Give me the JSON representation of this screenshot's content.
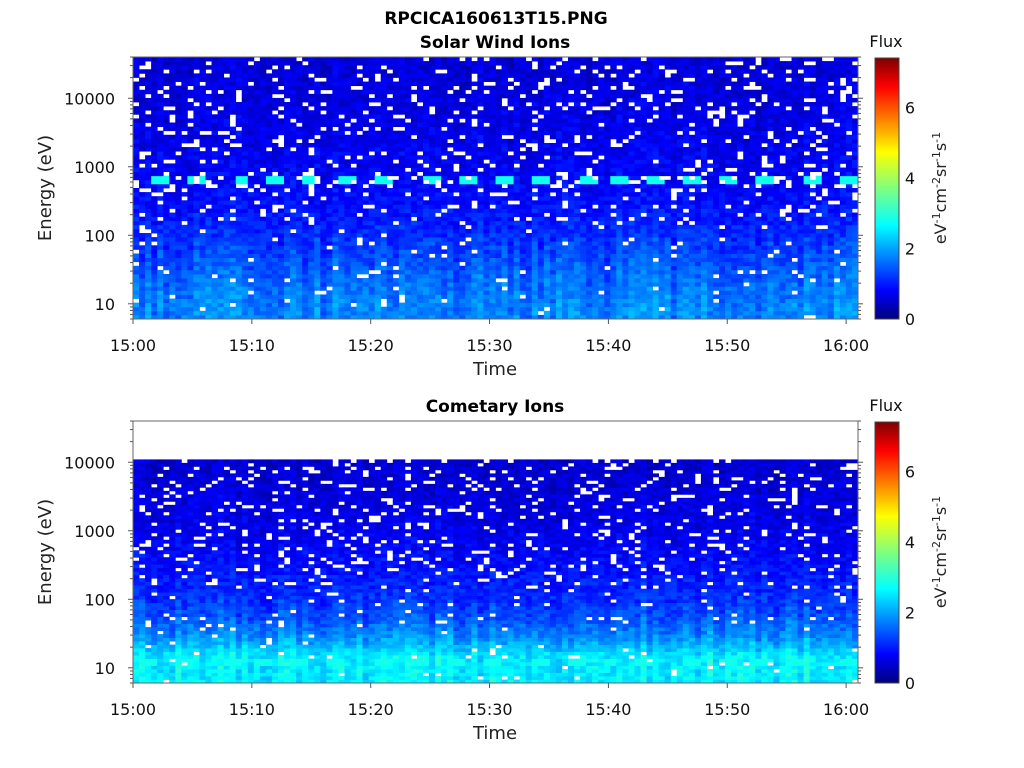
{
  "figure": {
    "filename": "RPCICA160613T15.PNG"
  },
  "chart_data": [
    {
      "type": "heatmap",
      "title": "Solar Wind Ions",
      "xlabel": "Time",
      "ylabel": "Energy (eV)",
      "x_ticks": [
        "15:00",
        "15:10",
        "15:20",
        "15:30",
        "15:40",
        "15:50",
        "16:00"
      ],
      "x_range": [
        "15:00",
        "16:01"
      ],
      "y_scale": "log",
      "y_ticks": [
        10,
        100,
        1000,
        10000
      ],
      "y_tick_labels": [
        "10",
        "100",
        "1000",
        "10000"
      ],
      "y_range": [
        6,
        40000
      ],
      "data_energy_max": 40000,
      "colorbar": {
        "title": "Flux",
        "label": "eV-1cm-2sr-1s-1",
        "range": [
          0,
          7.4
        ],
        "ticks": [
          0,
          2,
          4,
          6
        ],
        "colormap": "jet"
      },
      "features": [
        {
          "description": "periodic enhancement",
          "energy_ev": 650,
          "flux": 2.9,
          "times": [
            "15:02",
            "15:05",
            "15:09",
            "15:12",
            "15:15",
            "15:18",
            "15:21",
            "15:25",
            "15:28",
            "15:31",
            "15:34",
            "15:38",
            "15:41",
            "15:44",
            "15:47",
            "15:50",
            "15:53",
            "15:57",
            "16:00"
          ]
        }
      ],
      "flux_profile": [
        {
          "energy_ev": 8,
          "flux": 1.9
        },
        {
          "energy_ev": 15,
          "flux": 1.8
        },
        {
          "energy_ev": 30,
          "flux": 1.6
        },
        {
          "energy_ev": 60,
          "flux": 1.4
        },
        {
          "energy_ev": 120,
          "flux": 1.2
        },
        {
          "energy_ev": 300,
          "flux": 1.0
        },
        {
          "energy_ev": 1000,
          "flux": 0.85
        },
        {
          "energy_ev": 10000,
          "flux": 0.7
        },
        {
          "energy_ev": 35000,
          "flux": 0.65
        }
      ]
    },
    {
      "type": "heatmap",
      "title": "Cometary Ions",
      "xlabel": "Time",
      "ylabel": "Energy (eV)",
      "x_ticks": [
        "15:00",
        "15:10",
        "15:20",
        "15:30",
        "15:40",
        "15:50",
        "16:00"
      ],
      "x_range": [
        "15:00",
        "16:01"
      ],
      "y_scale": "log",
      "y_ticks": [
        10,
        100,
        1000,
        10000
      ],
      "y_tick_labels": [
        "10",
        "100",
        "1000",
        "10000"
      ],
      "y_range": [
        6,
        40000
      ],
      "data_energy_max": 11000,
      "colorbar": {
        "title": "Flux",
        "label": "eV-1cm-2sr-1s-1",
        "range": [
          0,
          7.4
        ],
        "ticks": [
          0,
          2,
          4,
          6
        ],
        "colormap": "jet"
      },
      "features": [
        {
          "description": "low-energy band",
          "energy_ev": 12,
          "flux": 2.9,
          "times": [
            "15:01",
            "15:04",
            "15:08",
            "15:11",
            "15:14",
            "15:17",
            "15:21",
            "15:24",
            "15:27",
            "15:30",
            "15:34",
            "15:37",
            "15:40",
            "15:43",
            "15:47",
            "15:50",
            "15:53",
            "15:56",
            "16:00"
          ]
        }
      ],
      "flux_profile": [
        {
          "energy_ev": 8,
          "flux": 2.7
        },
        {
          "energy_ev": 15,
          "flux": 2.7
        },
        {
          "energy_ev": 25,
          "flux": 2.1
        },
        {
          "energy_ev": 50,
          "flux": 1.6
        },
        {
          "energy_ev": 100,
          "flux": 1.3
        },
        {
          "energy_ev": 300,
          "flux": 1.0
        },
        {
          "energy_ev": 1000,
          "flux": 0.8
        },
        {
          "energy_ev": 5000,
          "flux": 0.65
        },
        {
          "energy_ev": 10500,
          "flux": 0.6
        }
      ]
    }
  ],
  "colors": {
    "background": "#ffffff",
    "axis": "#555555",
    "missing_data": "#ffffff"
  }
}
